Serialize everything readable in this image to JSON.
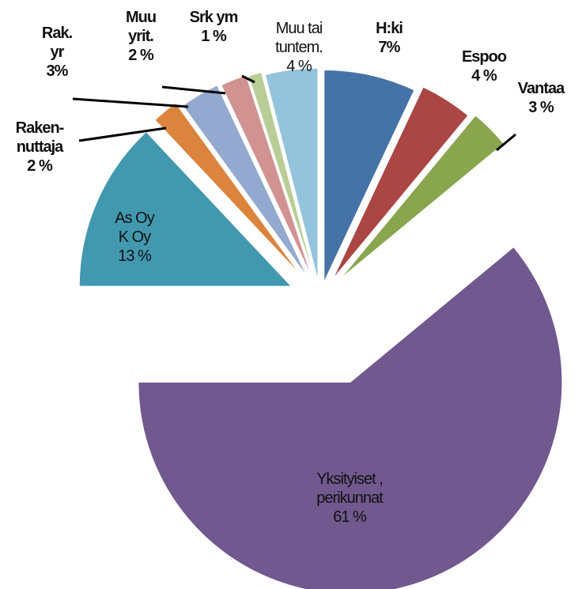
{
  "chart_data": {
    "type": "pie",
    "categories": [
      [
        "H:ki"
      ],
      [
        "Espoo"
      ],
      [
        "Vantaa"
      ],
      [
        "Yksityiset ,",
        "perikunnat"
      ],
      [
        "As Oy",
        "K Oy"
      ],
      [
        "Raken-",
        "nuttaja"
      ],
      [
        "Rak.",
        "yr"
      ],
      [
        "Muu",
        "yrit."
      ],
      [
        "Srk ym"
      ],
      [
        "Muu tai",
        "tuntem."
      ]
    ],
    "values": [
      7,
      4,
      3,
      61,
      13,
      2,
      3,
      2,
      1,
      4
    ],
    "value_labels": [
      "7%",
      "4 %",
      "3 %",
      "61 %",
      "13 %",
      "2 %",
      "3%",
      "2 %",
      "1 %",
      "4 %"
    ],
    "colors": [
      "#4572a7",
      "#aa4643",
      "#89a54e",
      "#71588f",
      "#4198af",
      "#db843d",
      "#93a9cf",
      "#d19392",
      "#b9cd96",
      "#93c4db"
    ]
  }
}
